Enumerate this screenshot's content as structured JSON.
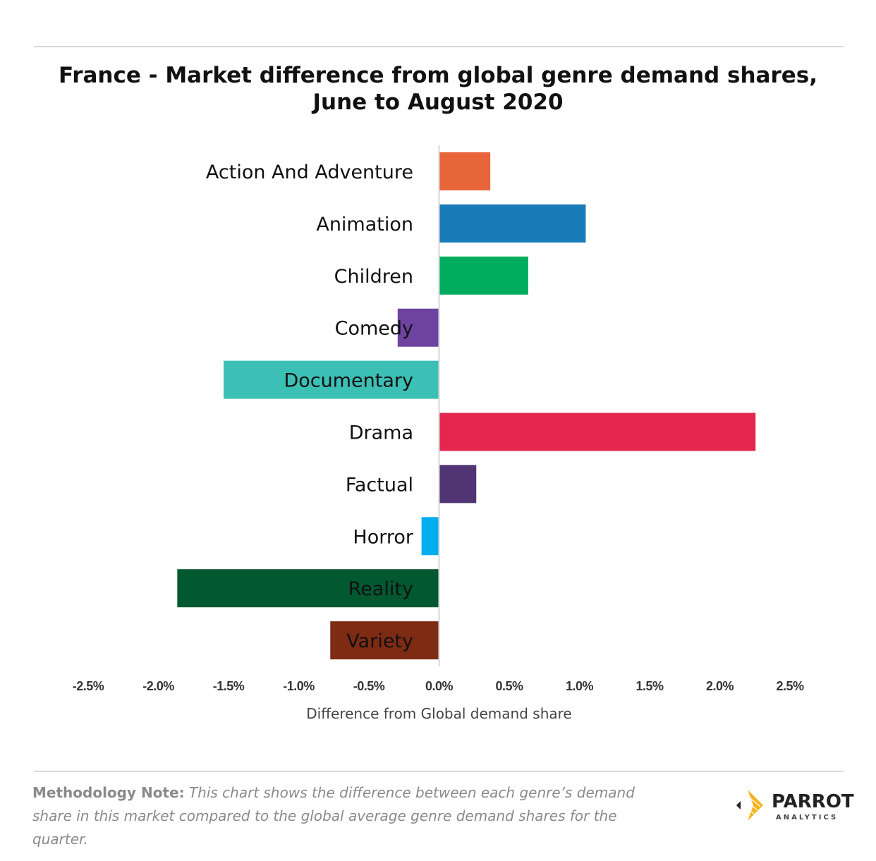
{
  "title_lines": [
    "France - Market difference from global genre demand shares,",
    "June to August 2020"
  ],
  "chart_data": {
    "type": "bar",
    "orientation": "horizontal",
    "title": "France - Market difference from global genre demand shares, June to August 2020",
    "xlabel": "Difference from Global demand share",
    "ylabel": "",
    "xlim": [
      -2.5,
      2.5
    ],
    "x_ticks": [
      -2.5,
      -2.0,
      -1.5,
      -1.0,
      -0.5,
      0.0,
      0.5,
      1.0,
      1.5,
      2.0,
      2.5
    ],
    "x_tick_labels": [
      "-2.5%",
      "-2.0%",
      "-1.5%",
      "-1.0%",
      "-0.5%",
      "0.0%",
      "0.5%",
      "1.0%",
      "1.5%",
      "2.0%",
      "2.5%"
    ],
    "categories": [
      "Action And Adventure",
      "Animation",
      "Children",
      "Comedy",
      "Documentary",
      "Drama",
      "Factual",
      "Horror",
      "Reality",
      "Variety"
    ],
    "values": [
      0.36,
      1.04,
      0.63,
      -0.29,
      -1.53,
      2.25,
      0.26,
      -0.12,
      -1.86,
      -0.77
    ],
    "colors": [
      "#E8643A",
      "#1A7BBA",
      "#00AD5F",
      "#6E43A0",
      "#3CBFB5",
      "#E5264D",
      "#503473",
      "#00AEEF",
      "#02582F",
      "#7E2B14"
    ],
    "grid": false,
    "legend": "none"
  },
  "methodology": {
    "lead": "Methodology Note:",
    "body": "This chart shows the difference between each genre’s demand share in this market compared to the global average genre demand shares for the quarter."
  },
  "logo": {
    "word": "PARROT",
    "sub": "ANALYTICS"
  }
}
